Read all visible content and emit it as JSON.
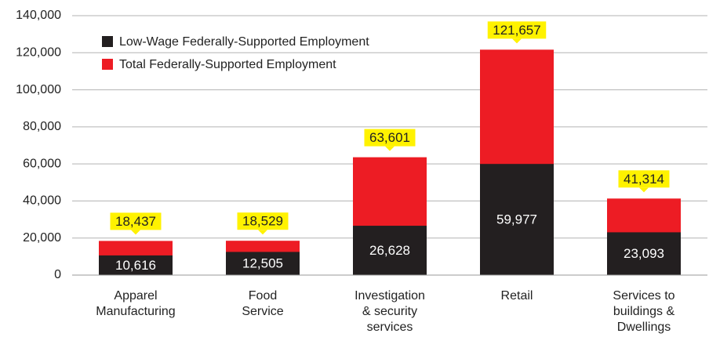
{
  "chart_data": {
    "type": "bar",
    "categories": [
      "Apparel\nManufacturing",
      "Food\nService",
      "Investigation\n& security\nservices",
      "Retail",
      "Services to\nbuildings &\nDwellings"
    ],
    "series": [
      {
        "name": "Low-Wage Federally-Supported Employment",
        "color": "#231f20",
        "values": [
          10616,
          12505,
          26628,
          59977,
          23093
        ],
        "value_labels": [
          "10,616",
          "12,505",
          "26,628",
          "59,977",
          "23,093"
        ]
      },
      {
        "name": "Total Federally-Supported Employment",
        "color": "#ed1c24",
        "values": [
          18437,
          18529,
          63601,
          121657,
          41314
        ],
        "value_labels": [
          "18,437",
          "18,529",
          "63,601",
          "121,657",
          "41,314"
        ]
      }
    ],
    "ylim": [
      0,
      140000
    ],
    "yticks": [
      0,
      {
        "value": 20000,
        "label": "20,000"
      },
      {
        "value": 40000,
        "label": "40,000"
      },
      {
        "value": 60000,
        "label": "60,000"
      },
      {
        "value": 80000,
        "label": "80,000"
      },
      {
        "value": 100000,
        "label": "100,000"
      },
      {
        "value": 120000,
        "label": "120,000"
      },
      {
        "value": 140000,
        "label": "140,000"
      }
    ],
    "grid": true,
    "legend": "top-left",
    "callout_color": "#fff200"
  }
}
